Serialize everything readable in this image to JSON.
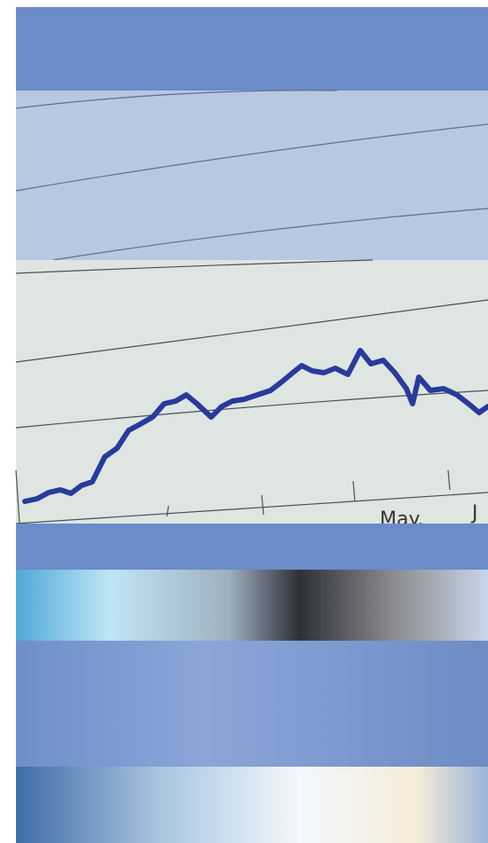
{
  "axis_labels": [
    "May.",
    "J"
  ]
}
